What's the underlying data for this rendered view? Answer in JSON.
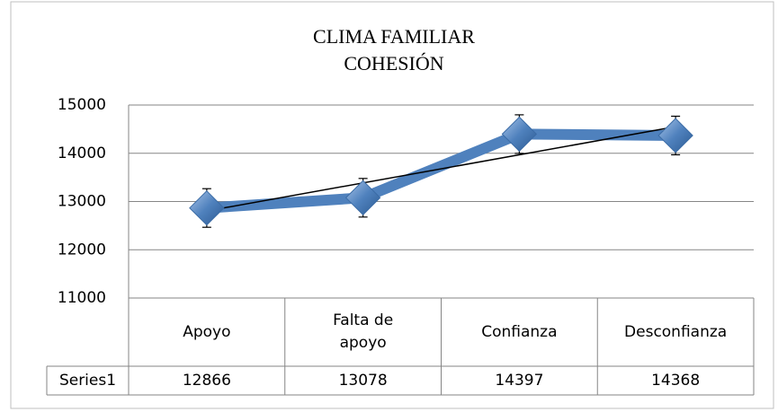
{
  "chart_data": {
    "type": "line",
    "title": "CLIMA FAMILIAR",
    "subtitle": "COHESIÓN",
    "categories": [
      "Apoyo",
      "Falta de apoyo",
      "Confianza",
      "Desconfianza"
    ],
    "series": [
      {
        "name": "Series1",
        "color": "#4f81bd",
        "values": [
          12866,
          13078,
          14397,
          14368
        ],
        "errors": [
          400,
          400,
          400,
          400
        ]
      }
    ],
    "ylim": [
      11000,
      15000
    ],
    "yticks": [
      11000,
      12000,
      13000,
      14000,
      15000
    ],
    "grid": true,
    "trendline": "linear",
    "data_table": true
  }
}
